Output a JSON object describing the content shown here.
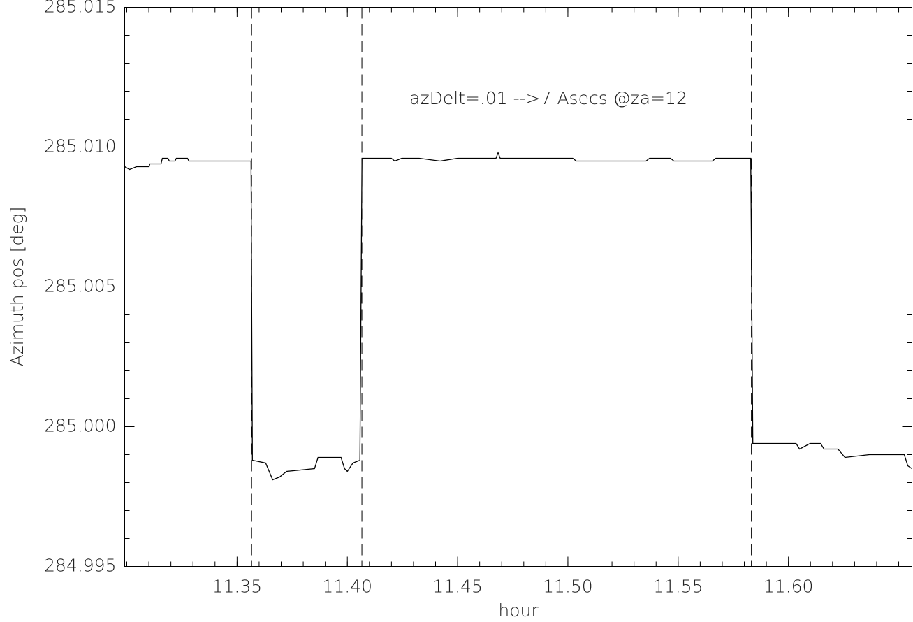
{
  "chart_data": {
    "type": "line",
    "ylabel": "Azimuth pos [deg]",
    "xlabel": "hour",
    "annotation": "azDelt=.01 -->7 Asecs @za=12",
    "xlim": [
      11.29905,
      11.65601
    ],
    "ylim": [
      284.995,
      285.015
    ],
    "xticks": [
      11.35,
      {
        "value": 11.4,
        "label": "11.40"
      },
      11.45,
      {
        "value": 11.5,
        "label": "11.50"
      },
      11.55,
      {
        "value": 11.6,
        "label": "11.60"
      }
    ],
    "yticks": [
      {
        "value": 284.995,
        "label": "284.995"
      },
      {
        "value": 285.0,
        "label": "285.000"
      },
      {
        "value": 285.005,
        "label": "285.005"
      },
      {
        "value": 285.01,
        "label": "285.010"
      },
      {
        "value": 285.015,
        "label": "285.015"
      }
    ],
    "x_minor_step": 0.01,
    "y_minor_step": 0.001,
    "vlines": [
      11.3566,
      11.4066,
      11.5832
    ],
    "color": "#000000",
    "series": [
      {
        "name": null,
        "color": "#000000",
        "x": [
          11.29905,
          11.30127,
          11.30443,
          11.31013,
          11.31044,
          11.31551,
          11.31614,
          11.31867,
          11.3193,
          11.32184,
          11.32247,
          11.32753,
          11.32816,
          11.35633,
          11.35696,
          11.36297,
          11.36456,
          11.36614,
          11.3693,
          11.37247,
          11.38513,
          11.38671,
          11.39715,
          11.39873,
          11.4,
          11.40253,
          11.4057,
          11.40665,
          11.41994,
          11.42152,
          11.42468,
          11.43259,
          11.44209,
          11.45,
          11.46741,
          11.46835,
          11.4693,
          11.50222,
          11.5038,
          11.53544,
          11.53703,
          11.54652,
          11.5481,
          11.56551,
          11.56709,
          11.58291,
          11.58386,
          11.60348,
          11.60506,
          11.60981,
          11.61456,
          11.61614,
          11.62247,
          11.62563,
          11.63671,
          11.65253,
          11.65411,
          11.65601
        ],
        "values": [
          285.0093,
          285.0092,
          285.0093,
          285.0093,
          285.0094,
          285.0094,
          285.0096,
          285.0096,
          285.0095,
          285.0095,
          285.0096,
          285.0096,
          285.0095,
          285.0095,
          284.9988,
          284.9987,
          284.9984,
          284.9981,
          284.9982,
          284.9984,
          284.9985,
          284.9989,
          284.9989,
          284.9985,
          284.9984,
          284.9987,
          284.9988,
          285.0096,
          285.0096,
          285.0095,
          285.0096,
          285.0096,
          285.0095,
          285.0096,
          285.0096,
          285.0098,
          285.0096,
          285.0096,
          285.0095,
          285.0095,
          285.0096,
          285.0096,
          285.0095,
          285.0095,
          285.0096,
          285.0096,
          284.9994,
          284.9994,
          284.9992,
          284.9994,
          284.9994,
          284.9992,
          284.9992,
          284.9989,
          284.999,
          284.999,
          284.9986,
          284.9985
        ]
      }
    ]
  }
}
